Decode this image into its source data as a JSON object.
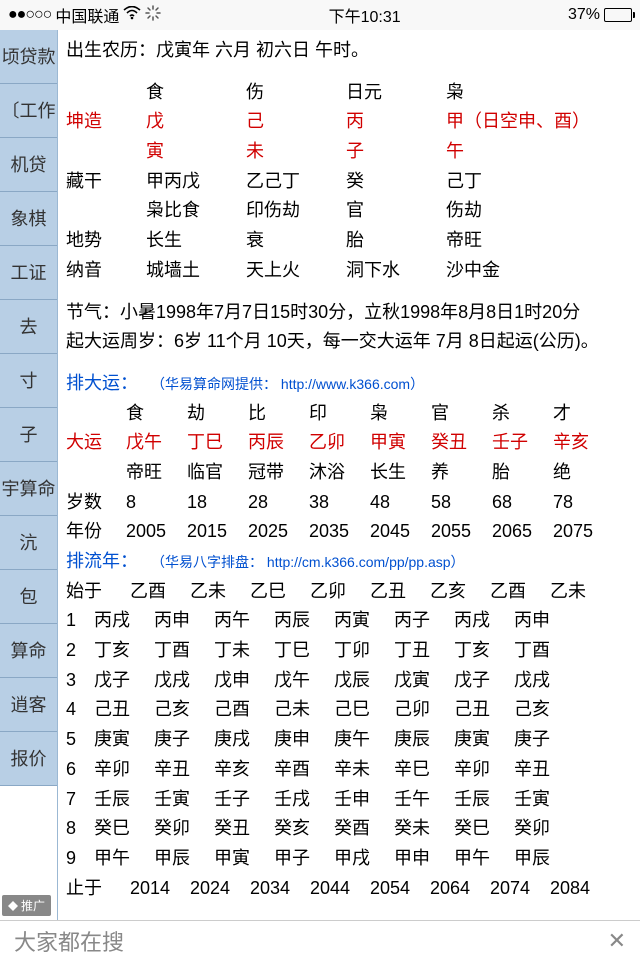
{
  "status": {
    "dots": "●●○○○",
    "carrier": "中国联通",
    "wifi": "✶",
    "spinner": "✳",
    "time": "下午10:31",
    "battery_pct": "37%",
    "battery_fill_color": "#4cd964"
  },
  "sidebar": {
    "items": [
      "顷贷款",
      "〔工作",
      "机贷",
      "象棋",
      "工证",
      "去",
      "寸",
      "子",
      "宇算命",
      "沆",
      "包",
      "算命",
      "逍客",
      "报价"
    ]
  },
  "content": {
    "birth": "出生农历：戊寅年 六月 初六日 午时。",
    "pillar_labels": [
      "",
      "食",
      "伤",
      "日元",
      "枭"
    ],
    "pillar_rows": {
      "r1": [
        "坤造",
        "戊",
        "己",
        "丙",
        "甲（日空申、酉）"
      ],
      "r2": [
        "",
        "寅",
        "未",
        "子",
        "午"
      ],
      "r3": [
        "藏干",
        "甲丙戊",
        "乙己丁",
        "癸",
        "己丁"
      ],
      "r4": [
        "",
        "枭比食",
        "印伤劫",
        "官",
        "伤劫"
      ],
      "r5": [
        "地势",
        "长生",
        "衰",
        "胎",
        "帝旺"
      ],
      "r6": [
        "纳音",
        "城墙土",
        "天上火",
        "洞下水",
        "沙中金"
      ]
    },
    "jieqi": "节气：小暑1998年7月7日15时30分，立秋1998年8月8日1时20分",
    "qidayun": "起大运周岁：6岁 11个月 10天，每一交大运年 7月 8日起运(公历)。",
    "paidayun_label": "排大运：",
    "paidayun_note": "（华易算命网提供： http://www.k366.com）",
    "dayun_headers": [
      "",
      "食",
      "劫",
      "比",
      "印",
      "枭",
      "官",
      "杀",
      "才"
    ],
    "dayun_r1": [
      "大运",
      "戊午",
      "丁巳",
      "丙辰",
      "乙卯",
      "甲寅",
      "癸丑",
      "壬子",
      "辛亥"
    ],
    "dayun_r2": [
      "",
      "帝旺",
      "临官",
      "冠带",
      "沐浴",
      "长生",
      "养",
      "胎",
      "绝"
    ],
    "dayun_r3": [
      "岁数",
      "8",
      "18",
      "28",
      "38",
      "48",
      "58",
      "68",
      "78"
    ],
    "dayun_r4": [
      "年份",
      "2005",
      "2015",
      "2025",
      "2035",
      "2045",
      "2055",
      "2065",
      "2075"
    ],
    "pailiunian_label": "排流年：",
    "pailiunian_note": "（华易八字排盘： http://cm.k366.com/pp/pp.asp）",
    "liunian": {
      "start": [
        "始于",
        "乙酉",
        "乙未",
        "乙巳",
        "乙卯",
        "乙丑",
        "乙亥",
        "乙酉",
        "乙未"
      ],
      "rows": [
        [
          "1",
          "丙戌",
          "丙申",
          "丙午",
          "丙辰",
          "丙寅",
          "丙子",
          "丙戌",
          "丙申"
        ],
        [
          "2",
          "丁亥",
          "丁酉",
          "丁未",
          "丁巳",
          "丁卯",
          "丁丑",
          "丁亥",
          "丁酉"
        ],
        [
          "3",
          "戊子",
          "戊戌",
          "戊申",
          "戊午",
          "戊辰",
          "戊寅",
          "戊子",
          "戊戌"
        ],
        [
          "4",
          "己丑",
          "己亥",
          "己酉",
          "己未",
          "己巳",
          "己卯",
          "己丑",
          "己亥"
        ],
        [
          "5",
          "庚寅",
          "庚子",
          "庚戌",
          "庚申",
          "庚午",
          "庚辰",
          "庚寅",
          "庚子"
        ],
        [
          "6",
          "辛卯",
          "辛丑",
          "辛亥",
          "辛酉",
          "辛未",
          "辛巳",
          "辛卯",
          "辛丑"
        ],
        [
          "7",
          "壬辰",
          "壬寅",
          "壬子",
          "壬戌",
          "壬申",
          "壬午",
          "壬辰",
          "壬寅"
        ],
        [
          "8",
          "癸巳",
          "癸卯",
          "癸丑",
          "癸亥",
          "癸酉",
          "癸未",
          "癸巳",
          "癸卯"
        ],
        [
          "9",
          "甲午",
          "甲辰",
          "甲寅",
          "甲子",
          "甲戌",
          "甲申",
          "甲午",
          "甲辰"
        ]
      ],
      "end": [
        "止于",
        "2014",
        "2024",
        "2034",
        "2044",
        "2054",
        "2064",
        "2074",
        "2084"
      ]
    },
    "promo": "推广"
  },
  "footer": {
    "text": "大家都在搜",
    "close": "✕"
  }
}
